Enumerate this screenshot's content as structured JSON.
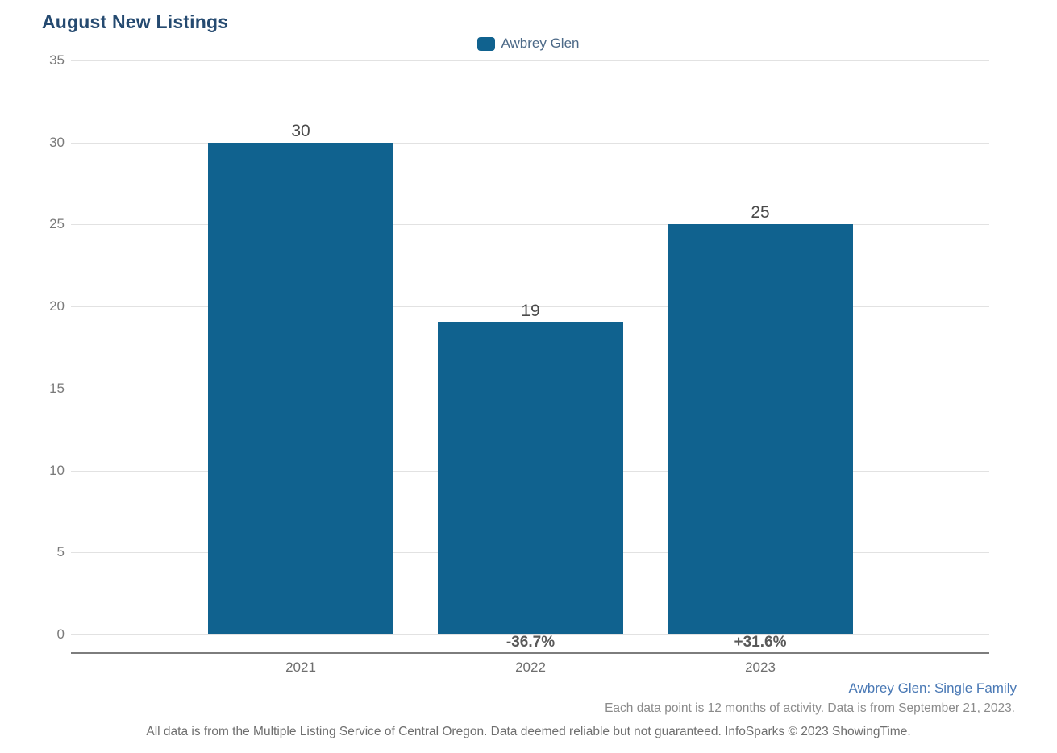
{
  "title": "August New Listings",
  "legend": {
    "label": "Awbrey Glen",
    "swatch_color": "#10628F"
  },
  "chart_data": {
    "type": "bar",
    "title": "August New Listings",
    "categories": [
      "2021",
      "2022",
      "2023"
    ],
    "series": [
      {
        "name": "Awbrey Glen",
        "values": [
          30,
          19,
          25
        ]
      }
    ],
    "percent_change_labels": [
      "",
      "-36.7%",
      "+31.6%"
    ],
    "value_labels": [
      "30",
      "19",
      "25"
    ],
    "xlabel": "",
    "ylabel": "",
    "ylim": [
      0,
      35
    ],
    "yticks": [
      35,
      30,
      25,
      20,
      15,
      10,
      5,
      0
    ],
    "grid": true,
    "legend_position": "top-center",
    "bar_color": "#10628F"
  },
  "bars": [
    {
      "year": "2021",
      "value": "30",
      "pct": ""
    },
    {
      "year": "2022",
      "value": "19",
      "pct": "-36.7%"
    },
    {
      "year": "2023",
      "value": "25",
      "pct": "+31.6%"
    }
  ],
  "footer": {
    "series_note": "Awbrey Glen: Single Family",
    "data_note": "Each data point is 12 months of activity. Data is from September 21, 2023.",
    "disclaimer": "All data is from the Multiple Listing Service of Central Oregon. Data deemed reliable but not guaranteed. InfoSparks © 2023 ShowingTime."
  },
  "colors": {
    "bar": "#10628F",
    "title": "#254a70",
    "legend_text": "#4d6a88",
    "gridline": "#e2e2e2",
    "axis_line": "#7d7d7d",
    "series_note": "#4a79b5"
  }
}
